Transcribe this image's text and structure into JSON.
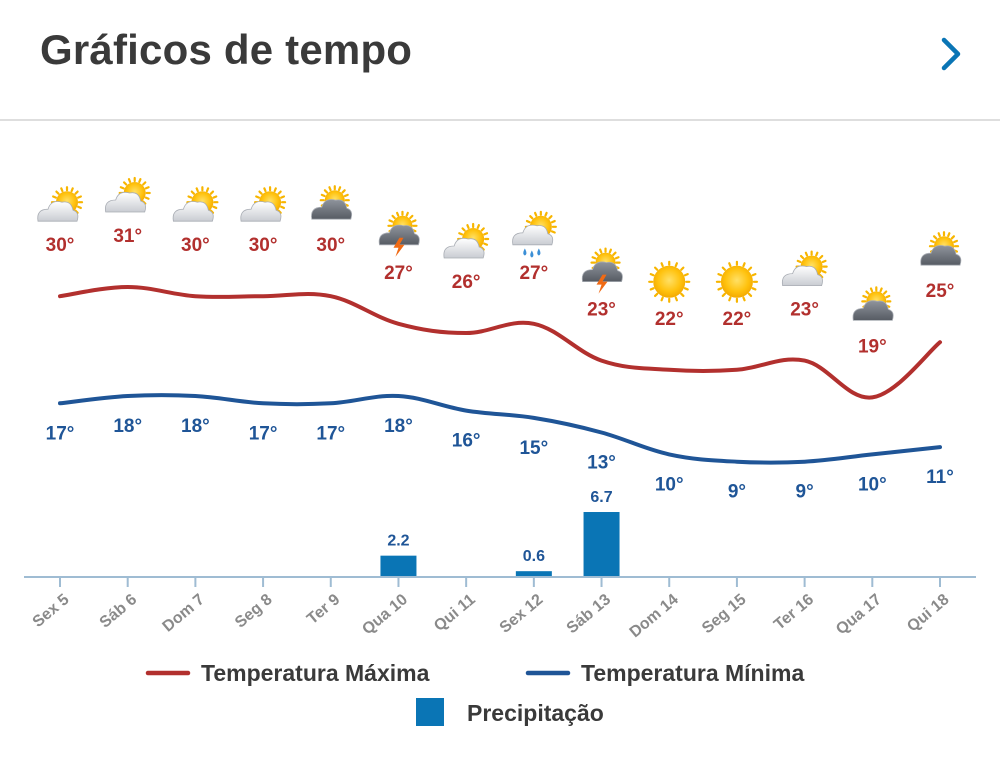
{
  "header": {
    "title": "Gráficos de tempo",
    "more_icon": "chevron-right-icon"
  },
  "colors": {
    "max": "#b2302e",
    "min": "#1f5597",
    "precip": "#0a75b5",
    "axis": "#9fbcd3",
    "tick_text": "#8a8a8a"
  },
  "chart_data": {
    "type": "line",
    "title": "Gráficos de tempo",
    "categories": [
      "Sex 5",
      "Sáb 6",
      "Dom 7",
      "Seg 8",
      "Ter 9",
      "Qua 10",
      "Qui 11",
      "Sex 12",
      "Sáb 13",
      "Dom 14",
      "Seg 15",
      "Ter 16",
      "Qua 17",
      "Qui 18"
    ],
    "series": [
      {
        "name": "Temperatura Máxima",
        "type": "line",
        "values": [
          30,
          31,
          30,
          30,
          30,
          27,
          26,
          27,
          23,
          22,
          22,
          23,
          19,
          25
        ],
        "labels": [
          "30°",
          "31°",
          "30°",
          "30°",
          "30°",
          "27°",
          "26°",
          "27°",
          "23°",
          "22°",
          "22°",
          "23°",
          "19°",
          "25°"
        ]
      },
      {
        "name": "Temperatura Mínima",
        "type": "line",
        "values": [
          17,
          18,
          18,
          17,
          17,
          18,
          16,
          15,
          13,
          10,
          9,
          9,
          10,
          11
        ],
        "labels": [
          "17°",
          "18°",
          "18°",
          "17°",
          "17°",
          "18°",
          "16°",
          "15°",
          "13°",
          "10°",
          "9°",
          "9°",
          "10°",
          "11°"
        ]
      },
      {
        "name": "Precipitação",
        "type": "bar",
        "values": [
          0,
          0,
          0,
          0,
          0,
          2.2,
          0,
          0.6,
          6.7,
          0,
          0,
          0,
          0,
          0
        ],
        "labels": [
          "",
          "",
          "",
          "",
          "",
          "2.2",
          "",
          "0.6",
          "6.7",
          "",
          "",
          "",
          "",
          ""
        ]
      }
    ],
    "weather_icons": [
      "partly-cloudy-icon",
      "partly-cloudy-icon",
      "partly-cloudy-icon",
      "partly-cloudy-icon",
      "cloudy-icon",
      "thunderstorm-icon",
      "partly-cloudy-icon",
      "rain-icon",
      "thunderstorm-icon",
      "sunny-icon",
      "sunny-icon",
      "partly-cloudy-icon",
      "cloudy-icon",
      "cloudy-icon"
    ],
    "legend": [
      "Temperatura Máxima",
      "Temperatura Mínima",
      "Precipitação"
    ],
    "legend_position": "bottom"
  }
}
